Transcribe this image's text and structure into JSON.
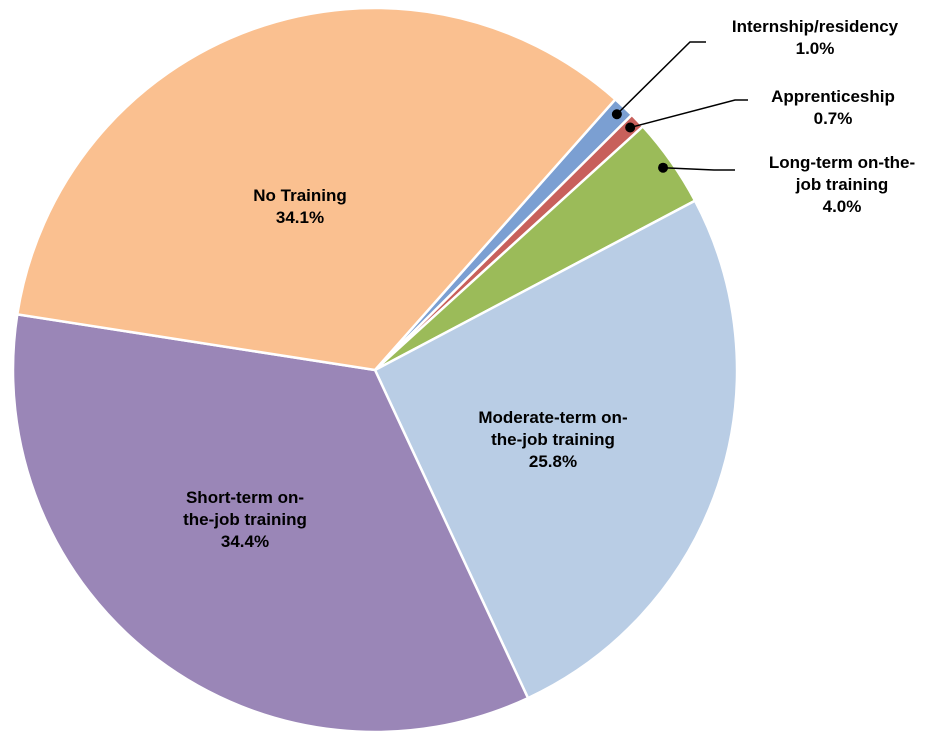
{
  "chart_data": {
    "type": "pie",
    "categories": [
      "Internship/residency",
      "Apprenticeship",
      "Long-term on-the-job training",
      "Moderate-term on-the-job training",
      "Short-term on-the-job training",
      "No Training"
    ],
    "values": [
      1.0,
      0.7,
      4.0,
      25.8,
      34.4,
      34.1
    ],
    "value_labels": [
      "1.0%",
      "0.7%",
      "4.0%",
      "25.8%",
      "34.4%",
      "34.1%"
    ],
    "colors": [
      "#7b9fd2",
      "#c8605b",
      "#9bbb59",
      "#b9cde5",
      "#9a86b7",
      "#fac090"
    ]
  }
}
